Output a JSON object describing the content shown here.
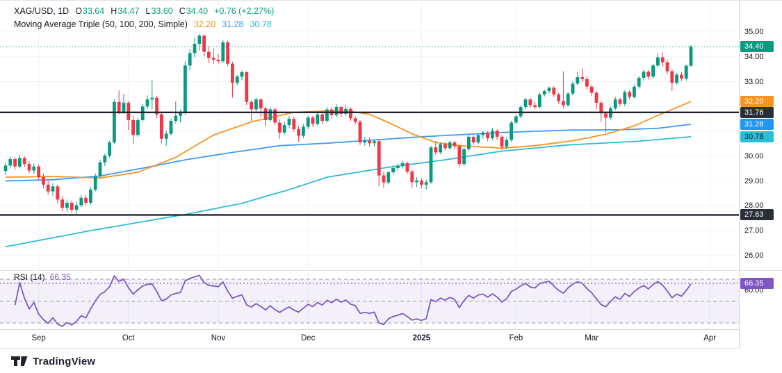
{
  "colors": {
    "background": "#ffffff",
    "text": "#131722",
    "grid": "#f0f3fa",
    "up": "#089981",
    "down": "#f23645",
    "ma50": "#f7941e",
    "ma100": "#3d9cf7",
    "ma200": "#2cbdd4",
    "rsi": "#7e57c2",
    "rsi_band_fill": "#7e57c2",
    "band_dash": "#8a8e9b",
    "hline": "#1e222d",
    "last_price_line": "#089981",
    "axis_border": "#d1d4dc"
  },
  "legend": {
    "symbol": "XAG/USD, 1D",
    "open_label": "O",
    "open": "33.64",
    "high_label": "H",
    "high": "34.47",
    "low_label": "L",
    "low": "33.60",
    "close_label": "C",
    "close": "34.40",
    "change": "+0.76 (+2.27%)",
    "indicator": "Moving Average Triple (50, 100, 200, Simple)",
    "ma50": "32.20",
    "ma100": "31.28",
    "ma200": "30.78"
  },
  "rsi_legend": {
    "label": "RSI (14)",
    "value": "66.35"
  },
  "price_axis": {
    "ticks": [
      {
        "label": "35.00",
        "price": 35
      },
      {
        "label": "34.00",
        "price": 34
      },
      {
        "label": "33.00",
        "price": 33
      },
      {
        "label": "30.00",
        "price": 30
      },
      {
        "label": "29.00",
        "price": 29
      },
      {
        "label": "28.00",
        "price": 28
      },
      {
        "label": "27.00",
        "price": 27
      },
      {
        "label": "26.00",
        "price": 26
      }
    ],
    "gridline_prices": [
      35,
      34,
      33,
      32,
      31,
      30,
      29,
      28,
      27,
      26
    ],
    "badges": [
      {
        "name": "last-price",
        "label": "34.40",
        "price": 34.4,
        "color": "#089981",
        "text_color": "#ffffff"
      },
      {
        "name": "ma50",
        "label": "32.20",
        "price": 32.2,
        "color": "#f7941e",
        "text_color": "#ffffff"
      },
      {
        "name": "hline-upper",
        "label": "31.76",
        "price": 31.76,
        "color": "#2a2e39",
        "text_color": "#ffffff"
      },
      {
        "name": "ma100",
        "label": "31.28",
        "price": 31.28,
        "color": "#2196f3",
        "text_color": "#ffffff"
      },
      {
        "name": "ma200",
        "label": "30.78",
        "price": 30.78,
        "color": "#2cbdd4",
        "text_color": "#10222c"
      },
      {
        "name": "hline-lower",
        "label": "27.63",
        "price": 27.63,
        "color": "#2a2e39",
        "text_color": "#ffffff"
      }
    ],
    "rsi_tick": {
      "label": "60.00",
      "value": 60
    },
    "rsi_badge": {
      "label": "66.35",
      "value": 66.35,
      "color": "#7e57c2",
      "text_color": "#ffffff"
    }
  },
  "time_axis": {
    "labels": [
      {
        "text": "Sep",
        "i": 7
      },
      {
        "text": "Oct",
        "i": 26
      },
      {
        "text": "Nov",
        "i": 45
      },
      {
        "text": "Dec",
        "i": 64
      },
      {
        "text": "2025",
        "i": 88,
        "bold": true
      },
      {
        "text": "Feb",
        "i": 108
      },
      {
        "text": "Mar",
        "i": 124
      },
      {
        "text": "Apr",
        "i": 149
      }
    ]
  },
  "branding": {
    "logo_text": "TradingView"
  },
  "chart_data": {
    "type": "candlestick",
    "symbol": "XAG/USD",
    "timeframe": "1D",
    "title": "XAG/USD, 1D",
    "ylim": [
      25.4,
      36.2
    ],
    "grid": true,
    "legend_position": "top-left",
    "last": {
      "open": 33.64,
      "high": 34.47,
      "low": 33.6,
      "close": 34.4,
      "change": 0.76,
      "change_pct": 2.27
    },
    "hlines": [
      31.76,
      27.63
    ],
    "last_price": 34.4,
    "candles": [
      [
        29.4,
        29.75,
        29.25,
        29.62
      ],
      [
        29.62,
        29.98,
        29.5,
        29.88
      ],
      [
        29.88,
        29.95,
        29.45,
        29.58
      ],
      [
        29.58,
        30.05,
        29.5,
        29.92
      ],
      [
        29.92,
        30.0,
        29.55,
        29.68
      ],
      [
        29.68,
        29.8,
        29.3,
        29.42
      ],
      [
        29.42,
        29.7,
        29.28,
        29.58
      ],
      [
        29.58,
        29.65,
        29.05,
        29.15
      ],
      [
        29.15,
        29.3,
        28.7,
        28.85
      ],
      [
        28.85,
        29.05,
        28.45,
        28.58
      ],
      [
        28.58,
        28.9,
        28.4,
        28.78
      ],
      [
        28.78,
        28.85,
        28.1,
        28.25
      ],
      [
        28.25,
        28.4,
        27.78,
        27.92
      ],
      [
        27.92,
        28.25,
        27.75,
        28.12
      ],
      [
        28.12,
        28.2,
        27.7,
        27.84
      ],
      [
        27.84,
        28.15,
        27.68,
        28.02
      ],
      [
        28.02,
        28.45,
        27.95,
        28.32
      ],
      [
        28.32,
        28.42,
        28.0,
        28.12
      ],
      [
        28.12,
        28.75,
        28.05,
        28.65
      ],
      [
        28.65,
        29.3,
        28.58,
        29.2
      ],
      [
        29.2,
        29.85,
        29.1,
        29.75
      ],
      [
        29.75,
        30.1,
        29.6,
        30.02
      ],
      [
        30.02,
        30.62,
        29.95,
        30.55
      ],
      [
        30.55,
        32.28,
        30.48,
        32.18
      ],
      [
        32.18,
        32.65,
        31.68,
        31.75
      ],
      [
        31.75,
        32.5,
        31.7,
        32.15
      ],
      [
        32.15,
        32.22,
        31.05,
        31.45
      ],
      [
        31.45,
        31.62,
        30.5,
        30.85
      ],
      [
        30.85,
        31.55,
        30.78,
        31.45
      ],
      [
        31.45,
        32.1,
        31.38,
        32.0
      ],
      [
        32.0,
        32.45,
        31.9,
        32.28
      ],
      [
        32.28,
        33.05,
        31.88,
        32.35
      ],
      [
        32.35,
        32.42,
        31.52,
        31.68
      ],
      [
        31.68,
        31.75,
        30.52,
        30.7
      ],
      [
        30.7,
        31.02,
        30.42,
        30.9
      ],
      [
        30.9,
        31.52,
        30.82,
        31.42
      ],
      [
        31.42,
        32.2,
        31.32,
        31.62
      ],
      [
        31.62,
        31.88,
        31.35,
        31.74
      ],
      [
        31.74,
        33.82,
        31.66,
        33.65
      ],
      [
        33.65,
        34.3,
        33.45,
        34.15
      ],
      [
        34.15,
        34.78,
        33.98,
        34.52
      ],
      [
        34.52,
        34.92,
        34.25,
        34.85
      ],
      [
        34.85,
        34.9,
        34.02,
        34.2
      ],
      [
        34.2,
        34.42,
        33.75,
        33.95
      ],
      [
        33.95,
        34.35,
        33.7,
        33.88
      ],
      [
        33.88,
        34.1,
        33.72,
        33.82
      ],
      [
        33.82,
        34.68,
        33.75,
        34.58
      ],
      [
        34.58,
        34.65,
        33.62,
        33.72
      ],
      [
        33.72,
        33.8,
        32.35,
        32.95
      ],
      [
        32.95,
        33.28,
        32.85,
        33.2
      ],
      [
        33.2,
        33.45,
        33.05,
        33.38
      ],
      [
        33.38,
        33.42,
        32.05,
        32.18
      ],
      [
        32.18,
        32.25,
        31.42,
        31.88
      ],
      [
        31.88,
        32.35,
        31.8,
        32.28
      ],
      [
        32.28,
        32.32,
        31.55,
        31.92
      ],
      [
        31.92,
        31.98,
        31.2,
        31.45
      ],
      [
        31.45,
        31.98,
        31.38,
        31.88
      ],
      [
        31.88,
        31.95,
        31.25,
        31.35
      ],
      [
        31.35,
        31.48,
        30.7,
        30.95
      ],
      [
        30.95,
        31.38,
        30.85,
        31.25
      ],
      [
        31.25,
        31.62,
        31.12,
        31.5
      ],
      [
        31.5,
        31.58,
        30.98,
        31.08
      ],
      [
        31.08,
        31.22,
        30.58,
        30.82
      ],
      [
        30.82,
        31.28,
        30.72,
        31.18
      ],
      [
        31.18,
        31.62,
        31.08,
        31.55
      ],
      [
        31.55,
        31.62,
        31.18,
        31.3
      ],
      [
        31.3,
        31.78,
        31.22,
        31.68
      ],
      [
        31.68,
        31.75,
        31.28,
        31.42
      ],
      [
        31.42,
        31.98,
        31.35,
        31.88
      ],
      [
        31.88,
        31.98,
        31.52,
        31.65
      ],
      [
        31.65,
        32.08,
        31.58,
        31.98
      ],
      [
        31.98,
        32.02,
        31.58,
        31.7
      ],
      [
        31.7,
        32.05,
        31.62,
        31.9
      ],
      [
        31.9,
        31.96,
        31.42,
        31.52
      ],
      [
        31.52,
        31.6,
        31.28,
        31.38
      ],
      [
        31.38,
        31.45,
        30.45,
        30.55
      ],
      [
        30.55,
        30.78,
        30.42,
        30.62
      ],
      [
        30.62,
        30.75,
        30.38,
        30.52
      ],
      [
        30.52,
        30.68,
        30.4,
        30.6
      ],
      [
        30.6,
        30.64,
        28.78,
        29.22
      ],
      [
        29.22,
        29.38,
        28.72,
        28.94
      ],
      [
        28.94,
        29.42,
        28.86,
        29.35
      ],
      [
        29.35,
        29.62,
        29.25,
        29.52
      ],
      [
        29.52,
        29.7,
        29.42,
        29.6
      ],
      [
        29.6,
        29.8,
        29.5,
        29.72
      ],
      [
        29.72,
        29.78,
        29.28,
        29.38
      ],
      [
        29.38,
        29.45,
        28.72,
        28.95
      ],
      [
        28.95,
        29.15,
        28.75,
        29.02
      ],
      [
        29.02,
        29.1,
        28.7,
        28.85
      ],
      [
        28.85,
        29.05,
        28.66,
        28.95
      ],
      [
        28.95,
        30.42,
        28.88,
        30.35
      ],
      [
        30.35,
        30.6,
        30.05,
        30.15
      ],
      [
        30.15,
        30.55,
        30.08,
        30.48
      ],
      [
        30.48,
        30.56,
        30.22,
        30.32
      ],
      [
        30.32,
        30.62,
        30.25,
        30.55
      ],
      [
        30.55,
        30.62,
        30.28,
        30.4
      ],
      [
        30.4,
        30.48,
        29.55,
        29.68
      ],
      [
        29.68,
        30.35,
        29.6,
        30.28
      ],
      [
        30.28,
        30.85,
        30.2,
        30.78
      ],
      [
        30.78,
        30.85,
        30.45,
        30.55
      ],
      [
        30.55,
        30.92,
        30.48,
        30.85
      ],
      [
        30.85,
        31.02,
        30.7,
        30.95
      ],
      [
        30.95,
        31.0,
        30.6,
        30.72
      ],
      [
        30.72,
        31.12,
        30.65,
        31.02
      ],
      [
        31.02,
        31.08,
        30.65,
        30.78
      ],
      [
        30.78,
        30.85,
        30.25,
        30.38
      ],
      [
        30.38,
        30.75,
        30.3,
        30.65
      ],
      [
        30.65,
        31.42,
        30.58,
        31.35
      ],
      [
        31.35,
        31.68,
        31.28,
        31.6
      ],
      [
        31.6,
        32.05,
        31.52,
        31.98
      ],
      [
        31.98,
        32.35,
        31.9,
        32.28
      ],
      [
        32.28,
        32.35,
        31.95,
        32.05
      ],
      [
        32.05,
        32.18,
        31.88,
        31.98
      ],
      [
        31.98,
        32.55,
        31.92,
        32.48
      ],
      [
        32.48,
        32.68,
        32.4,
        32.62
      ],
      [
        32.62,
        32.8,
        32.52,
        32.75
      ],
      [
        32.75,
        32.82,
        32.38,
        32.48
      ],
      [
        32.48,
        32.55,
        32.12,
        32.22
      ],
      [
        32.22,
        33.42,
        31.92,
        32.05
      ],
      [
        32.05,
        32.58,
        32.0,
        32.52
      ],
      [
        32.52,
        33.0,
        32.45,
        32.92
      ],
      [
        32.92,
        33.38,
        32.85,
        33.18
      ],
      [
        33.18,
        33.55,
        33.0,
        33.1
      ],
      [
        33.1,
        33.22,
        32.68,
        32.8
      ],
      [
        32.8,
        32.88,
        32.42,
        32.55
      ],
      [
        32.55,
        32.62,
        31.88,
        32.15
      ],
      [
        32.15,
        32.22,
        31.38,
        31.72
      ],
      [
        31.72,
        31.8,
        30.95,
        31.55
      ],
      [
        31.55,
        32.0,
        31.48,
        31.92
      ],
      [
        31.92,
        32.38,
        31.85,
        32.28
      ],
      [
        32.28,
        32.35,
        32.0,
        32.1
      ],
      [
        32.1,
        32.65,
        32.02,
        32.58
      ],
      [
        32.58,
        32.65,
        32.28,
        32.38
      ],
      [
        32.38,
        32.88,
        32.32,
        32.8
      ],
      [
        32.8,
        33.22,
        32.72,
        33.15
      ],
      [
        33.15,
        33.48,
        33.05,
        33.4
      ],
      [
        33.4,
        33.48,
        33.08,
        33.2
      ],
      [
        33.2,
        33.72,
        33.12,
        33.65
      ],
      [
        33.65,
        34.15,
        33.58,
        33.98
      ],
      [
        33.98,
        34.18,
        33.62,
        33.78
      ],
      [
        33.78,
        33.88,
        33.3,
        33.42
      ],
      [
        33.42,
        33.5,
        32.62,
        32.95
      ],
      [
        32.95,
        33.35,
        32.88,
        33.28
      ],
      [
        33.28,
        33.38,
        33.02,
        33.12
      ],
      [
        33.12,
        33.68,
        33.05,
        33.64
      ],
      [
        33.64,
        34.47,
        33.6,
        34.4
      ]
    ],
    "indicators": {
      "ma_triple": {
        "type": "sma",
        "lengths": [
          50,
          100,
          200
        ],
        "values": [
          32.2,
          31.28,
          30.78
        ],
        "ma50_points": [
          [
            0,
            29.15
          ],
          [
            10,
            29.18
          ],
          [
            20,
            29.12
          ],
          [
            28,
            29.35
          ],
          [
            36,
            29.95
          ],
          [
            44,
            30.85
          ],
          [
            52,
            31.38
          ],
          [
            61,
            31.76
          ],
          [
            68,
            31.82
          ],
          [
            73,
            31.8
          ],
          [
            77,
            31.68
          ],
          [
            81,
            31.35
          ],
          [
            86,
            30.9
          ],
          [
            91,
            30.55
          ],
          [
            96,
            30.42
          ],
          [
            105,
            30.32
          ],
          [
            112,
            30.42
          ],
          [
            120,
            30.62
          ],
          [
            127,
            30.88
          ],
          [
            133,
            31.22
          ],
          [
            139,
            31.72
          ],
          [
            145,
            32.2
          ]
        ],
        "ma100_points": [
          [
            0,
            29.0
          ],
          [
            10,
            29.05
          ],
          [
            20,
            29.2
          ],
          [
            30,
            29.55
          ],
          [
            38,
            29.85
          ],
          [
            48,
            30.15
          ],
          [
            58,
            30.42
          ],
          [
            68,
            30.52
          ],
          [
            78,
            30.65
          ],
          [
            88,
            30.78
          ],
          [
            98,
            30.88
          ],
          [
            105,
            30.95
          ],
          [
            112,
            31.0
          ],
          [
            120,
            31.05
          ],
          [
            130,
            31.06
          ],
          [
            138,
            31.12
          ],
          [
            145,
            31.28
          ]
        ],
        "ma200_points": [
          [
            0,
            26.35
          ],
          [
            18,
            27.0
          ],
          [
            38,
            27.65
          ],
          [
            50,
            28.1
          ],
          [
            60,
            28.65
          ],
          [
            68,
            29.15
          ],
          [
            81,
            29.55
          ],
          [
            93,
            29.85
          ],
          [
            105,
            30.2
          ],
          [
            119,
            30.45
          ],
          [
            134,
            30.6
          ],
          [
            145,
            30.78
          ]
        ]
      },
      "rsi": {
        "length": 14,
        "value": 66.35,
        "bands": {
          "upper": 70,
          "middle": 50,
          "lower": 30
        },
        "axis_tick": 60
      }
    }
  }
}
